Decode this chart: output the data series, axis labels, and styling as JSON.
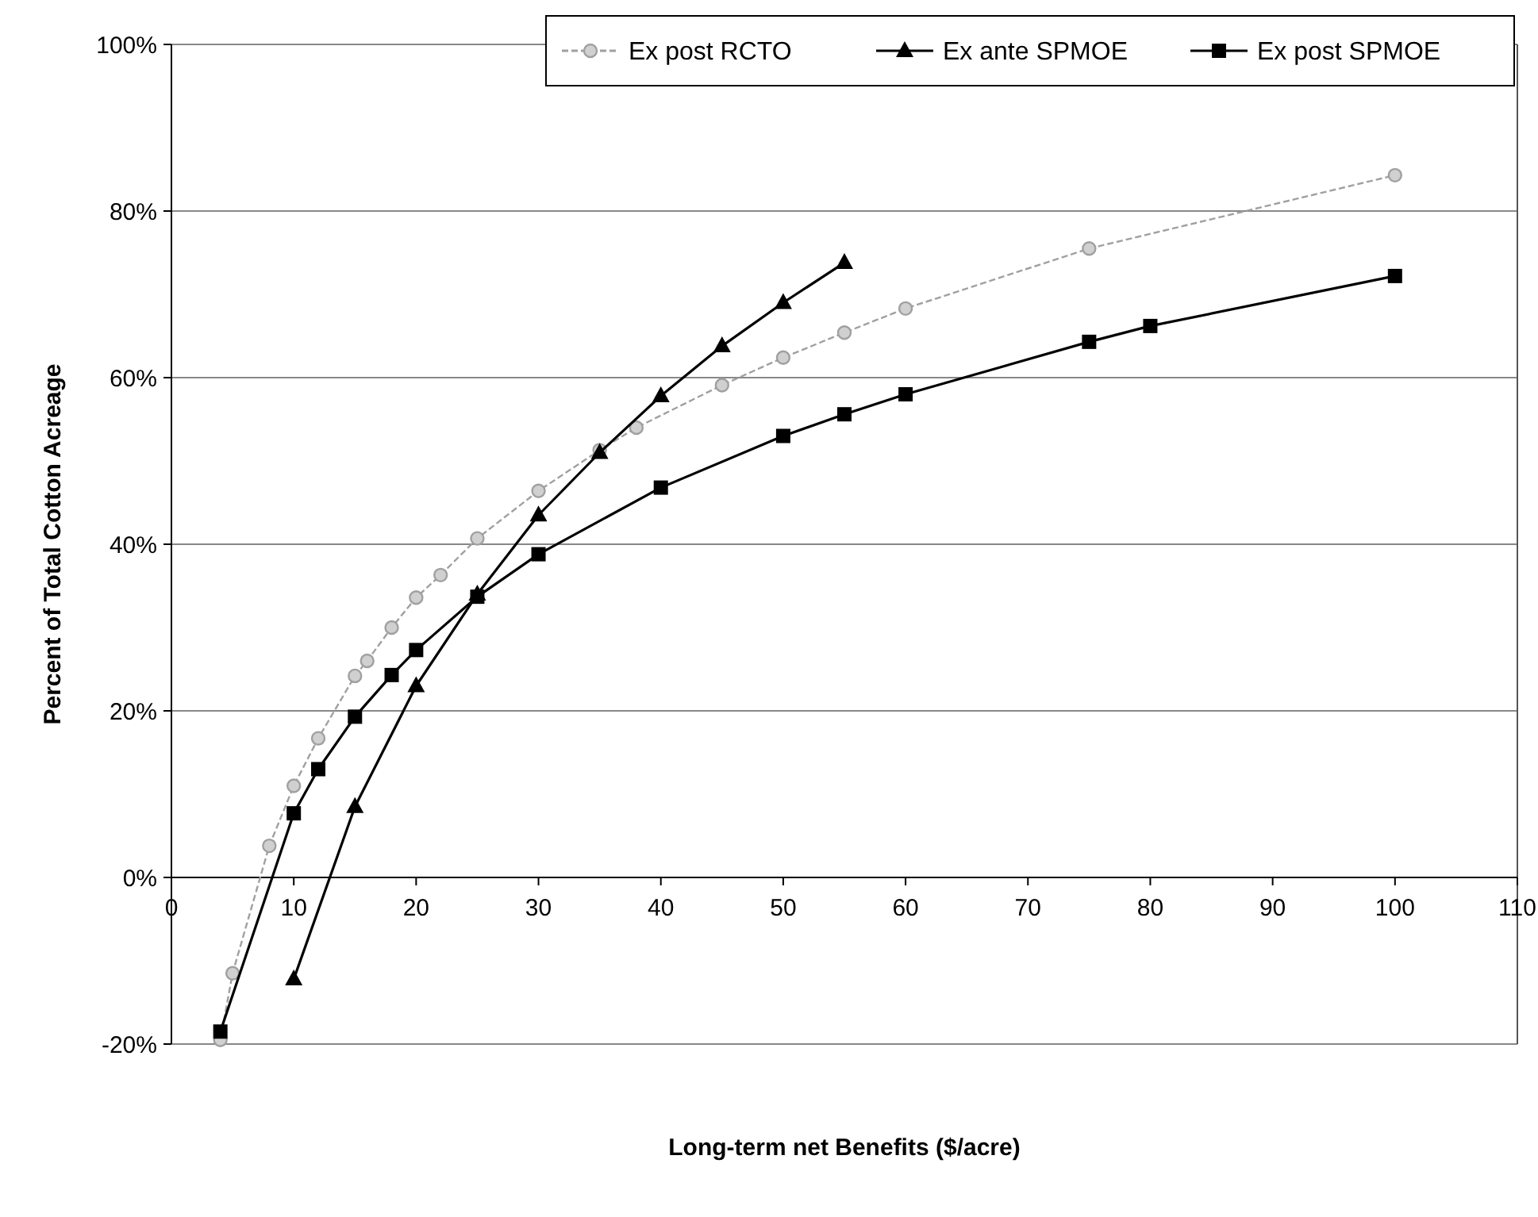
{
  "chart_data": {
    "type": "line",
    "xlabel": "Long-term net Benefits ($/acre)",
    "ylabel": "Percent of Total Cotton Acreage",
    "xlim": [
      0,
      110
    ],
    "xticks": [
      0,
      10,
      20,
      30,
      40,
      50,
      60,
      70,
      80,
      90,
      100,
      110
    ],
    "ylim": [
      -20,
      100
    ],
    "yticks": [
      {
        "value": -20,
        "label": "-20%"
      },
      {
        "value": 0,
        "label": "0%"
      },
      {
        "value": 20,
        "label": "20%"
      },
      {
        "value": 40,
        "label": "40%"
      },
      {
        "value": 60,
        "label": "60%"
      },
      {
        "value": 80,
        "label": "80%"
      },
      {
        "value": 100,
        "label": "100%"
      }
    ],
    "grid": "y",
    "legend": "top right",
    "series": [
      {
        "name": "Ex post RCTO",
        "color": "#a0a0a0",
        "marker": "circle",
        "line_style": "dashed",
        "x": [
          4,
          5,
          8,
          10,
          12,
          15,
          16,
          18,
          20,
          22,
          25,
          30,
          35,
          38,
          45,
          50,
          55,
          60,
          75,
          100
        ],
        "values": [
          -19.5,
          -11.5,
          3.8,
          11,
          16.7,
          24.2,
          26,
          30,
          33.6,
          36.3,
          40.7,
          46.4,
          51.3,
          54,
          59.1,
          62.4,
          65.4,
          68.3,
          75.5,
          84.3
        ]
      },
      {
        "name": "Ex ante SPMOE",
        "color": "#000000",
        "marker": "triangle",
        "line_style": "solid",
        "x": [
          10,
          15,
          20,
          25,
          30,
          35,
          40,
          45,
          50,
          55
        ],
        "values": [
          -12.2,
          8.5,
          23,
          34,
          43.5,
          51,
          57.8,
          63.8,
          69,
          73.8
        ]
      },
      {
        "name": "Ex post SPMOE",
        "color": "#000000",
        "marker": "square",
        "line_style": "solid",
        "x": [
          4,
          10,
          12,
          15,
          18,
          20,
          25,
          30,
          40,
          50,
          55,
          60,
          75,
          80,
          100
        ],
        "values": [
          -18.5,
          7.7,
          13,
          19.3,
          24.3,
          27.3,
          33.7,
          38.8,
          46.8,
          53,
          55.6,
          58,
          64.3,
          66.2,
          72.2
        ]
      }
    ]
  }
}
